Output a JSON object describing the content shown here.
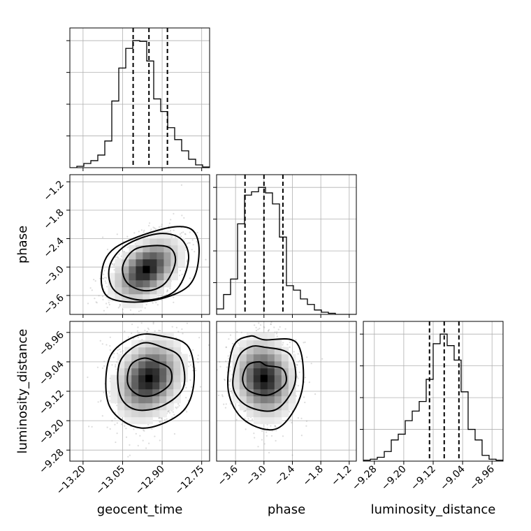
{
  "chart_data": {
    "type": "corner",
    "parameters": [
      {
        "name": "geocent_time",
        "label": "geocent_time",
        "range": [
          -13.25,
          -12.72
        ],
        "ticks": [
          -13.2,
          -13.05,
          -12.9,
          -12.75
        ],
        "tick_labels": [
          "−13.20",
          "−13.05",
          "−12.90",
          "−12.75"
        ],
        "quantiles": [
          -13.01,
          -12.95,
          -12.88
        ],
        "hist": {
          "edges": [
            -13.25,
            -13.2235,
            -13.197,
            -13.1705,
            -13.144,
            -13.1175,
            -13.091,
            -13.0645,
            -13.038,
            -13.0115,
            -12.985,
            -12.9585,
            -12.932,
            -12.9055,
            -12.879,
            -12.8525,
            -12.826,
            -12.7995,
            -12.773,
            -12.7465,
            -12.72
          ],
          "counts": [
            0,
            2,
            6,
            10,
            18,
            38,
            95,
            142,
            170,
            181,
            180,
            152,
            98,
            80,
            57,
            40,
            24,
            12,
            4,
            1
          ]
        }
      },
      {
        "name": "phase",
        "label": "phase",
        "range": [
          -4.0,
          -1.05
        ],
        "ticks": [
          -3.6,
          -3.0,
          -2.4,
          -1.8,
          -1.2
        ],
        "tick_labels": [
          "−3.6",
          "−3.0",
          "−2.4",
          "−1.8",
          "−1.2"
        ],
        "quantiles": [
          -3.4,
          -3.0,
          -2.6
        ],
        "hist": {
          "edges": [
            -4.0,
            -3.8525,
            -3.705,
            -3.5575,
            -3.41,
            -3.2625,
            -3.115,
            -2.9675,
            -2.82,
            -2.6725,
            -2.525,
            -2.3775,
            -2.23,
            -2.0825,
            -1.935,
            -1.7875,
            -1.64,
            -1.4925,
            -1.345,
            -1.1975,
            -1.05
          ],
          "counts": [
            5,
            18,
            32,
            82,
            108,
            111,
            115,
            110,
            100,
            70,
            26,
            22,
            14,
            9,
            4,
            2,
            1,
            0,
            0,
            0
          ]
        }
      },
      {
        "name": "luminosity_distance",
        "label": "luminosity_distance",
        "range": [
          -9.31,
          -8.93
        ],
        "ticks": [
          -9.28,
          -9.2,
          -9.12,
          -9.04,
          -8.96
        ],
        "tick_labels": [
          "−9.28",
          "−9.20",
          "−9.12",
          "−9.04",
          "−8.96"
        ],
        "quantiles": [
          -9.13,
          -9.09,
          -9.05
        ],
        "hist": {
          "edges": [
            -9.31,
            -9.291,
            -9.272,
            -9.253,
            -9.234,
            -9.215,
            -9.196,
            -9.177,
            -9.158,
            -9.139,
            -9.12,
            -9.101,
            -9.082,
            -9.063,
            -9.044,
            -9.025,
            -9.006,
            -8.987,
            -8.968,
            -8.949,
            -8.93
          ],
          "counts": [
            1,
            2,
            4,
            10,
            22,
            28,
            42,
            52,
            62,
            85,
            122,
            132,
            120,
            105,
            72,
            33,
            22,
            6,
            2,
            1
          ]
        }
      }
    ],
    "pairs": [
      {
        "x": "geocent_time",
        "y": "phase",
        "mean": [
          -12.96,
          -3.05
        ],
        "sd": [
          0.07,
          0.38
        ],
        "rho": 0.45,
        "contours": [
          {
            "level": 0.5,
            "ring": [
              [
                -12.94,
                -2.55
              ],
              [
                -12.87,
                -2.6
              ],
              [
                -12.85,
                -2.9
              ],
              [
                -12.89,
                -3.35
              ],
              [
                -12.96,
                -3.5
              ],
              [
                -13.03,
                -3.35
              ],
              [
                -13.05,
                -3.0
              ],
              [
                -13.01,
                -2.65
              ]
            ]
          },
          {
            "level": 1.0,
            "ring": [
              [
                -12.92,
                -2.3
              ],
              [
                -12.83,
                -2.4
              ],
              [
                -12.8,
                -2.85
              ],
              [
                -12.85,
                -3.5
              ],
              [
                -12.97,
                -3.7
              ],
              [
                -13.08,
                -3.5
              ],
              [
                -13.1,
                -3.0
              ],
              [
                -13.04,
                -2.55
              ]
            ]
          },
          {
            "level": 1.5,
            "ring": [
              [
                -12.9,
                -2.2
              ],
              [
                -12.79,
                -2.2
              ],
              [
                -12.76,
                -2.7
              ],
              [
                -12.8,
                -3.4
              ],
              [
                -12.95,
                -3.72
              ],
              [
                -13.1,
                -3.65
              ],
              [
                -13.13,
                -3.15
              ],
              [
                -13.08,
                -2.6
              ]
            ]
          }
        ]
      },
      {
        "x": "geocent_time",
        "y": "luminosity_distance",
        "mean": [
          -12.95,
          -9.085
        ],
        "sd": [
          0.07,
          0.06
        ],
        "rho": 0.25,
        "contours": [
          {
            "level": 0.5,
            "ring": [
              [
                -12.92,
                -9.04
              ],
              [
                -12.87,
                -9.06
              ],
              [
                -12.87,
                -9.1
              ],
              [
                -12.93,
                -9.13
              ],
              [
                -12.99,
                -9.13
              ],
              [
                -13.03,
                -9.1
              ],
              [
                -13.02,
                -9.05
              ],
              [
                -12.97,
                -9.03
              ]
            ]
          },
          {
            "level": 1.0,
            "ring": [
              [
                -12.9,
                -9.0
              ],
              [
                -12.83,
                -9.03
              ],
              [
                -12.82,
                -9.11
              ],
              [
                -12.9,
                -9.16
              ],
              [
                -13.0,
                -9.17
              ],
              [
                -13.06,
                -9.13
              ],
              [
                -13.06,
                -9.04
              ],
              [
                -12.98,
                -8.99
              ]
            ]
          },
          {
            "level": 1.5,
            "ring": [
              [
                -12.9,
                -8.97
              ],
              [
                -12.8,
                -9.0
              ],
              [
                -12.78,
                -9.1
              ],
              [
                -12.83,
                -9.18
              ],
              [
                -12.98,
                -9.22
              ],
              [
                -13.1,
                -9.16
              ],
              [
                -13.1,
                -9.03
              ],
              [
                -13.0,
                -8.97
              ]
            ]
          }
        ]
      },
      {
        "x": "phase",
        "y": "luminosity_distance",
        "mean": [
          -3.0,
          -9.085
        ],
        "sd": [
          0.35,
          0.06
        ],
        "rho": -0.1,
        "contours": [
          {
            "level": 0.5,
            "ring": [
              [
                -2.95,
                -9.05
              ],
              [
                -2.6,
                -9.06
              ],
              [
                -2.55,
                -9.1
              ],
              [
                -2.9,
                -9.13
              ],
              [
                -3.3,
                -9.12
              ],
              [
                -3.45,
                -9.09
              ],
              [
                -3.35,
                -9.05
              ],
              [
                -3.1,
                -9.04
              ]
            ]
          },
          {
            "level": 1.0,
            "ring": [
              [
                -3.0,
                -9.0
              ],
              [
                -2.45,
                -9.02
              ],
              [
                -2.35,
                -9.1
              ],
              [
                -2.75,
                -9.17
              ],
              [
                -3.35,
                -9.16
              ],
              [
                -3.65,
                -9.11
              ],
              [
                -3.55,
                -9.03
              ],
              [
                -3.3,
                -9.0
              ]
            ]
          },
          {
            "level": 1.5,
            "ring": [
              [
                -3.0,
                -8.98
              ],
              [
                -2.3,
                -8.99
              ],
              [
                -2.2,
                -9.12
              ],
              [
                -2.7,
                -9.22
              ],
              [
                -3.4,
                -9.2
              ],
              [
                -3.75,
                -9.12
              ],
              [
                -3.65,
                -9.0
              ],
              [
                -3.3,
                -8.97
              ]
            ]
          }
        ]
      }
    ],
    "grid": true,
    "scatter_color": "#9a9a9a",
    "line_color": "#000000"
  }
}
